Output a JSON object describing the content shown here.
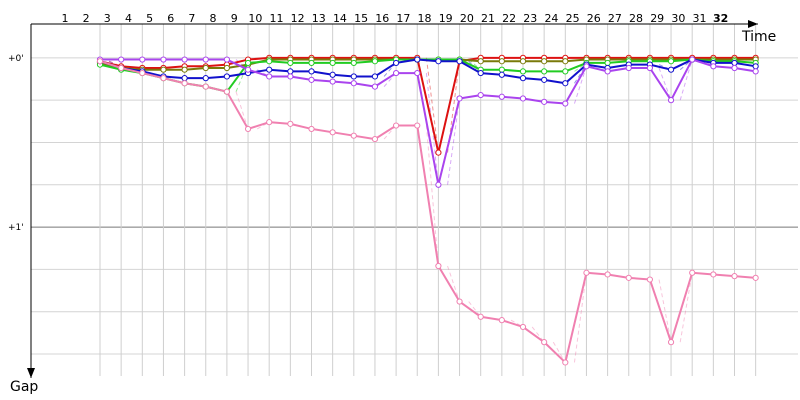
{
  "chart_data": {
    "type": "line",
    "xlabel": "Time",
    "ylabel": "Gap",
    "laps": [
      1,
      2,
      3,
      4,
      5,
      6,
      7,
      8,
      9,
      10,
      11,
      12,
      13,
      14,
      15,
      16,
      17,
      18,
      19,
      20,
      21,
      22,
      23,
      24,
      25,
      26,
      27,
      28,
      29,
      30,
      31,
      32
    ],
    "current_lap": 32,
    "y_ticks": [
      {
        "value": 0,
        "label": "+0'"
      },
      {
        "value": 1,
        "label": "+1'"
      }
    ],
    "ylim": [
      -0.2,
      1.88
    ],
    "series": [
      {
        "color": "#dd1111",
        "values": [
          0.02,
          0.05,
          0.06,
          0.06,
          0.05,
          0.05,
          0.04,
          0.01,
          0.0,
          0.0,
          0.0,
          0.0,
          0.0,
          0.0,
          0.0,
          0.0,
          0.56,
          0.02,
          0.0,
          0.0,
          0.0,
          0.0,
          0.0,
          0.0,
          0.0,
          0.0,
          0.0,
          0.0,
          0.0,
          0.0,
          0.0,
          0.0
        ]
      },
      {
        "color": "#7a7a0a",
        "values": [
          0.03,
          0.06,
          0.07,
          0.07,
          0.07,
          0.06,
          0.06,
          0.04,
          0.01,
          0.01,
          0.01,
          0.01,
          0.01,
          0.01,
          0.01,
          0.01,
          0.01,
          0.01,
          0.02,
          0.02,
          0.02,
          0.02,
          0.02,
          0.01,
          0.01,
          0.01,
          0.01,
          0.01,
          0.01,
          0.01,
          0.01,
          0.01
        ]
      },
      {
        "color": "#22cc22",
        "values": [
          0.04,
          0.07,
          0.09,
          0.12,
          0.15,
          0.17,
          0.2,
          0.03,
          0.02,
          0.03,
          0.03,
          0.03,
          0.03,
          0.02,
          0.01,
          0.01,
          0.01,
          0.01,
          0.07,
          0.07,
          0.08,
          0.08,
          0.08,
          0.03,
          0.03,
          0.02,
          0.02,
          0.02,
          0.01,
          0.02,
          0.02,
          0.03
        ]
      },
      {
        "color": "#1111cc",
        "values": [
          0.02,
          0.06,
          0.08,
          0.11,
          0.12,
          0.12,
          0.11,
          0.09,
          0.07,
          0.08,
          0.08,
          0.1,
          0.11,
          0.11,
          0.03,
          0.01,
          0.02,
          0.02,
          0.09,
          0.1,
          0.12,
          0.13,
          0.15,
          0.04,
          0.06,
          0.04,
          0.04,
          0.07,
          0.01,
          0.03,
          0.03,
          0.05
        ]
      },
      {
        "color": "#aa44ee",
        "values": [
          0.01,
          0.01,
          0.01,
          0.01,
          0.01,
          0.01,
          0.01,
          0.07,
          0.11,
          0.11,
          0.13,
          0.14,
          0.15,
          0.17,
          0.09,
          0.09,
          0.75,
          0.24,
          0.22,
          0.23,
          0.24,
          0.26,
          0.27,
          0.05,
          0.08,
          0.06,
          0.06,
          0.25,
          0.01,
          0.05,
          0.06,
          0.08
        ]
      },
      {
        "color": "#f080b0",
        "values": [
          0.02,
          0.06,
          0.09,
          0.12,
          0.15,
          0.17,
          0.2,
          0.42,
          0.38,
          0.39,
          0.42,
          0.44,
          0.46,
          0.48,
          0.4,
          0.4,
          1.23,
          1.44,
          1.53,
          1.55,
          1.59,
          1.68,
          1.8,
          1.27,
          1.28,
          1.3,
          1.31,
          1.68,
          1.27,
          1.28,
          1.29,
          1.3
        ]
      }
    ]
  }
}
